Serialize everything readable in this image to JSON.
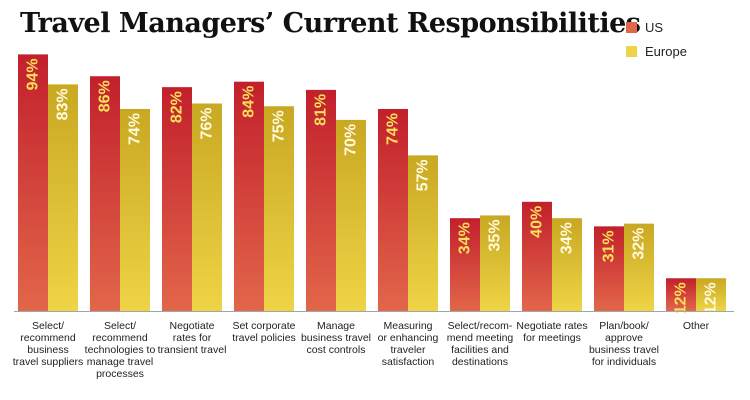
{
  "colors": {
    "us_top": "#c2202c",
    "us_bottom": "#e2664a",
    "europe_top": "#c9a822",
    "europe_bottom": "#eed446",
    "label_us": "#f7e05a",
    "label_europe": "#fffbe0",
    "axis": "#9aa8b2"
  },
  "chart_data": {
    "type": "bar",
    "title": "Travel Managers’ Current Responsibilities",
    "xlabel": "",
    "ylabel": "",
    "ylim": [
      0,
      100
    ],
    "grid": false,
    "legend_position": "top-right",
    "categories": [
      [
        "Select/",
        "recommend",
        "business",
        "travel suppliers"
      ],
      [
        "Select/",
        "recommend",
        "technologies to",
        "manage travel",
        "processes"
      ],
      [
        "Negotiate",
        "rates for",
        "transient travel"
      ],
      [
        "Set corporate",
        "travel policies"
      ],
      [
        "Manage",
        "business travel",
        "cost controls"
      ],
      [
        "Measuring",
        "or enhancing",
        "traveler",
        "satisfaction"
      ],
      [
        "Select/recom-",
        "mend meeting",
        "facilities and",
        "destinations"
      ],
      [
        "Negotiate rates",
        "for meetings"
      ],
      [
        "Plan/book/",
        "approve",
        "business travel",
        "for individuals"
      ],
      [
        "Other"
      ]
    ],
    "series": [
      {
        "name": "US",
        "values": [
          94,
          86,
          82,
          84,
          81,
          74,
          34,
          40,
          31,
          12
        ],
        "labels": [
          "94%",
          "86%",
          "82%",
          "84%",
          "81%",
          "74%",
          "34%",
          "40%",
          "31%",
          "12%"
        ]
      },
      {
        "name": "Europe",
        "values": [
          83,
          74,
          76,
          75,
          70,
          57,
          35,
          34,
          32,
          12
        ],
        "labels": [
          "83%",
          "74%",
          "76%",
          "75%",
          "70%",
          "57%",
          "35%",
          "34%",
          "32%",
          "12%"
        ]
      }
    ]
  }
}
